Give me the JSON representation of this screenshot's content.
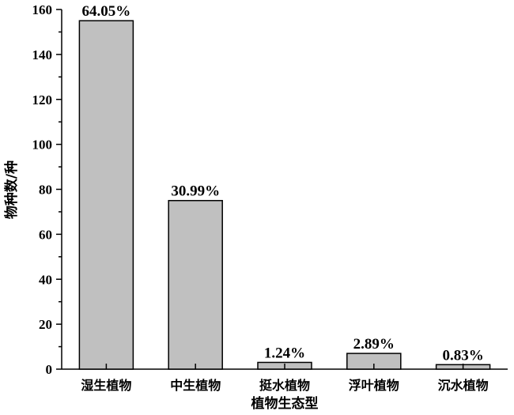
{
  "chart_data": {
    "type": "bar",
    "categories": [
      "湿生植物",
      "中生植物",
      "挺水植物",
      "浮叶植物",
      "沉水植物"
    ],
    "values": [
      155,
      75,
      3,
      7,
      2
    ],
    "data_labels": [
      "64.05%",
      "30.99%",
      "1.24%",
      "2.89%",
      "0.83%"
    ],
    "title": "",
    "xlabel": "植物生态型",
    "ylabel": "物种数/种",
    "ylim": [
      0,
      160
    ],
    "yticks": [
      0,
      20,
      40,
      60,
      80,
      100,
      120,
      140,
      160
    ],
    "grid": false,
    "legend": "none",
    "colors": {
      "bar_fill": "#c0c0c0",
      "bar_stroke": "#000000"
    }
  }
}
